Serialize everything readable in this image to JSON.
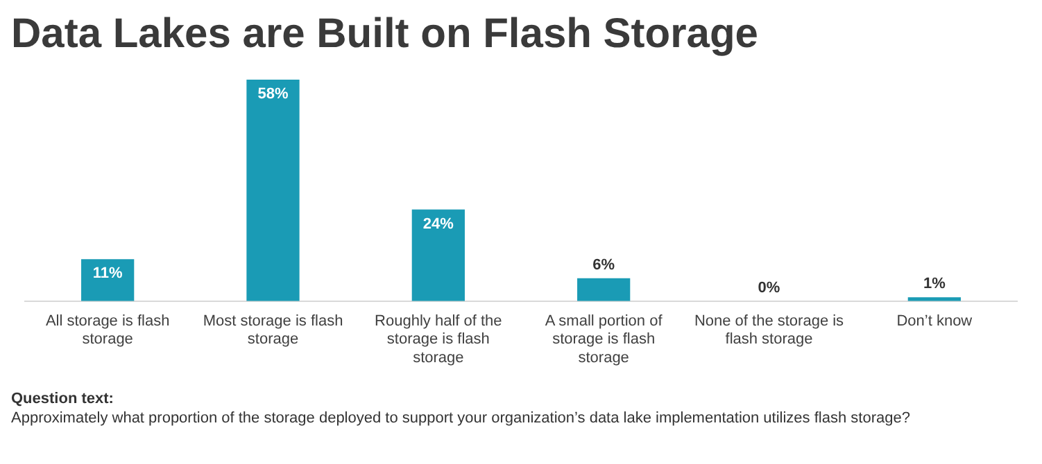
{
  "chart_data": {
    "type": "bar",
    "title": "Data Lakes are Built on Flash Storage",
    "categories": [
      "All storage is flash storage",
      "Most storage is flash storage",
      "Roughly half of the storage is flash storage",
      "A small portion of storage is flash storage",
      "None of the storage is flash storage",
      "Don’t know"
    ],
    "values": [
      11,
      58,
      24,
      6,
      0,
      1
    ],
    "value_labels": [
      "11%",
      "58%",
      "24%",
      "6%",
      "0%",
      "1%"
    ],
    "color": "#1a9bb5",
    "grid": false,
    "legend": false,
    "annotations": [
      "Question text:",
      "Approximately what proportion of the storage deployed to support your organization’s data lake implementation utilizes flash storage?"
    ]
  }
}
